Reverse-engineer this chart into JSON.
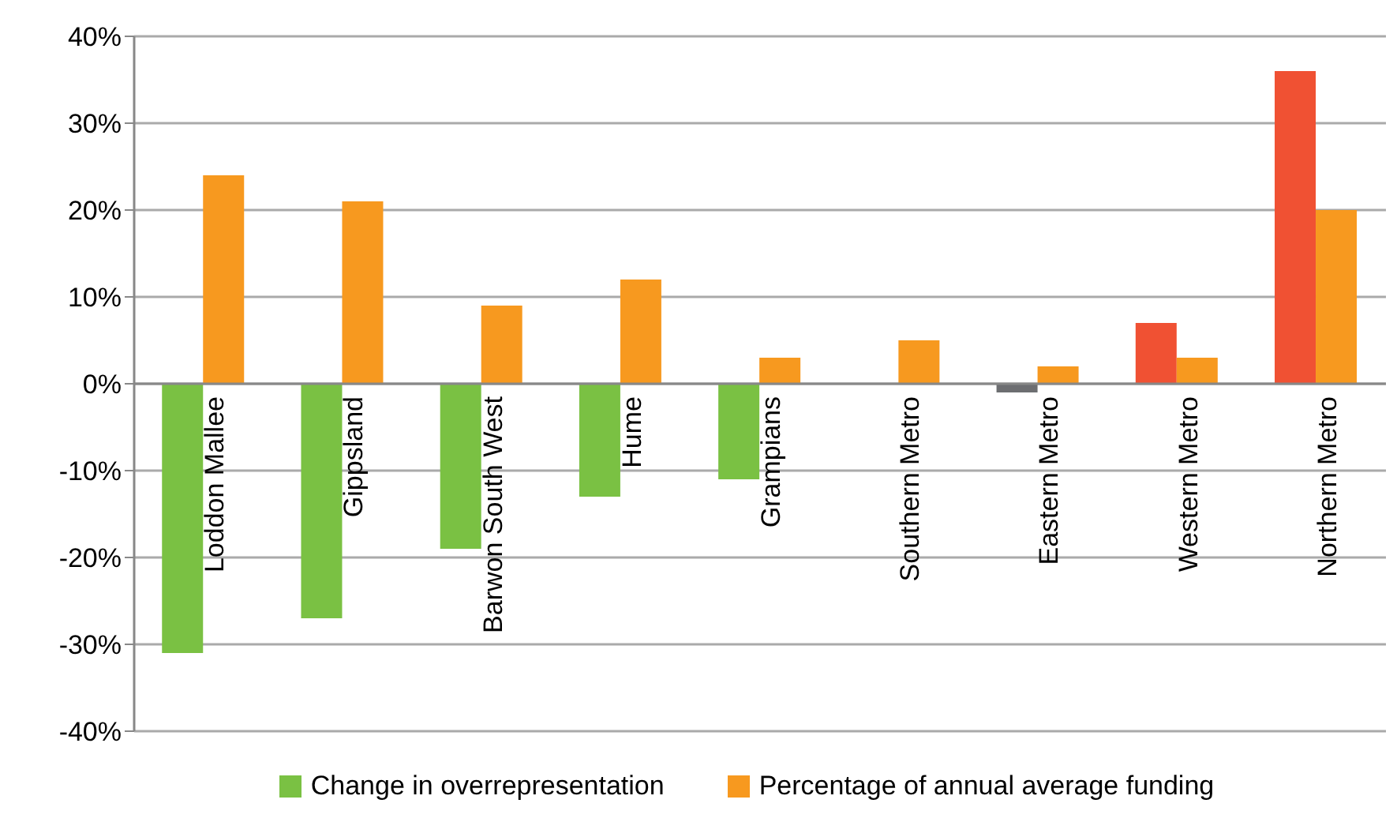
{
  "chart_data": {
    "type": "bar",
    "categories": [
      "Loddon Mallee",
      "Gippsland",
      "Barwon South West",
      "Hume",
      "Grampians",
      "Southern Metro",
      "Eastern Metro",
      "Western Metro",
      "Northern Metro"
    ],
    "series": [
      {
        "name": "Change in overrepresentation",
        "color": "#7ac143",
        "colors": [
          "#7ac143",
          "#7ac143",
          "#7ac143",
          "#7ac143",
          "#7ac143",
          "#7ac143",
          "#6d6e71",
          "#f05133",
          "#f05133"
        ],
        "values": [
          -31,
          -27,
          -19,
          -13,
          -11,
          0,
          -1,
          7,
          36
        ]
      },
      {
        "name": "Percentage of annual average funding",
        "color": "#f7991f",
        "values": [
          24,
          21,
          9,
          12,
          3,
          5,
          2,
          3,
          20
        ]
      }
    ],
    "ylim": [
      -40,
      40
    ],
    "yticks": [
      {
        "value": -40,
        "label": "-40%"
      },
      {
        "value": -30,
        "label": "-30%"
      },
      {
        "value": -20,
        "label": "-20%"
      },
      {
        "value": -10,
        "label": "-10%"
      },
      {
        "value": 0,
        "label": "0%"
      },
      {
        "value": 10,
        "label": "10%"
      },
      {
        "value": 20,
        "label": "20%"
      },
      {
        "value": 30,
        "label": "30%"
      },
      {
        "value": 40,
        "label": "40%"
      }
    ],
    "grid": "y",
    "legend": "bottom"
  }
}
